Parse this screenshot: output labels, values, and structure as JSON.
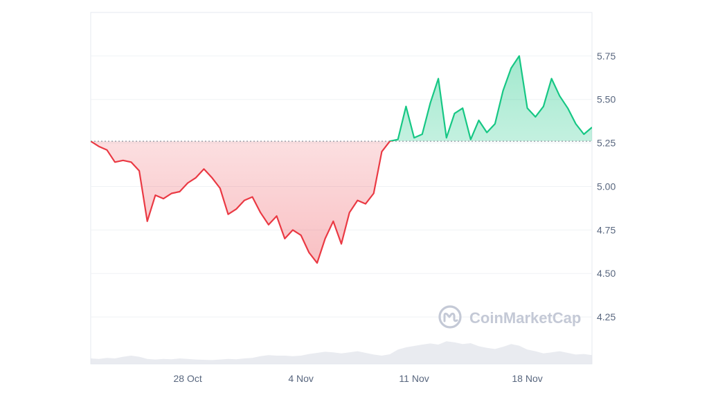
{
  "brand": {
    "name": "CoinMarketCap",
    "logo_icon": "coinmarketcap-logo-icon",
    "watermark_color": "#c4c9d6"
  },
  "colors": {
    "up": "#16c784",
    "down": "#ea3943",
    "grid": "#eff2f5",
    "baseline": "#8a919e",
    "axis_text": "#58667e",
    "volume": "#dfe3ea"
  },
  "chart_data": {
    "type": "area",
    "title": "",
    "xlabel": "",
    "ylabel": "",
    "baseline_value": 5.26,
    "ylim": [
      3.98,
      6.0
    ],
    "yticks": [
      4.25,
      4.5,
      4.75,
      5.0,
      5.25,
      5.5,
      5.75
    ],
    "ytick_labels": [
      "4.25",
      "4.50",
      "4.75",
      "5.00",
      "5.25",
      "5.50",
      "5.75"
    ],
    "xlim": [
      "2024-10-22",
      "2024-11-22"
    ],
    "xticks": [
      {
        "date": "2024-10-28",
        "label": "28 Oct"
      },
      {
        "date": "2024-11-04",
        "label": "4 Nov"
      },
      {
        "date": "2024-11-11",
        "label": "11 Nov"
      },
      {
        "date": "2024-11-18",
        "label": "18 Nov"
      }
    ],
    "grid": true,
    "series": [
      {
        "x": [
          "2024-10-22T00:00",
          "2024-10-22T12:00",
          "2024-10-23T00:00",
          "2024-10-23T12:00",
          "2024-10-24T00:00",
          "2024-10-24T12:00",
          "2024-10-25T00:00",
          "2024-10-25T12:00",
          "2024-10-26T00:00",
          "2024-10-26T12:00",
          "2024-10-27T00:00",
          "2024-10-27T12:00",
          "2024-10-28T00:00",
          "2024-10-28T12:00",
          "2024-10-29T00:00",
          "2024-10-29T12:00",
          "2024-10-30T00:00",
          "2024-10-30T12:00",
          "2024-10-31T00:00",
          "2024-10-31T12:00",
          "2024-11-01T00:00",
          "2024-11-01T12:00",
          "2024-11-02T00:00",
          "2024-11-02T12:00",
          "2024-11-03T00:00",
          "2024-11-03T12:00",
          "2024-11-04T00:00",
          "2024-11-04T12:00",
          "2024-11-05T00:00",
          "2024-11-05T12:00",
          "2024-11-06T00:00",
          "2024-11-06T12:00",
          "2024-11-07T00:00",
          "2024-11-07T12:00",
          "2024-11-08T00:00",
          "2024-11-08T12:00",
          "2024-11-09T00:00",
          "2024-11-09T12:00",
          "2024-11-10T00:00",
          "2024-11-10T12:00",
          "2024-11-11T00:00",
          "2024-11-11T12:00",
          "2024-11-12T00:00",
          "2024-11-12T12:00",
          "2024-11-13T00:00",
          "2024-11-13T12:00",
          "2024-11-14T00:00",
          "2024-11-14T12:00",
          "2024-11-15T00:00",
          "2024-11-15T12:00",
          "2024-11-16T00:00",
          "2024-11-16T12:00",
          "2024-11-17T00:00",
          "2024-11-17T12:00",
          "2024-11-18T00:00",
          "2024-11-18T12:00",
          "2024-11-19T00:00",
          "2024-11-19T12:00",
          "2024-11-20T00:00",
          "2024-11-20T12:00",
          "2024-11-21T00:00",
          "2024-11-21T12:00",
          "2024-11-22T00:00"
        ],
        "values": [
          5.26,
          5.23,
          5.21,
          5.14,
          5.15,
          5.14,
          5.09,
          4.8,
          4.95,
          4.93,
          4.96,
          4.97,
          5.02,
          5.05,
          5.1,
          5.05,
          4.99,
          4.84,
          4.87,
          4.92,
          4.94,
          4.85,
          4.78,
          4.83,
          4.7,
          4.75,
          4.72,
          4.62,
          4.56,
          4.7,
          4.8,
          4.67,
          4.85,
          4.92,
          4.9,
          4.96,
          5.2,
          5.26,
          5.27,
          5.46,
          5.28,
          5.3,
          5.48,
          5.62,
          5.28,
          5.42,
          5.45,
          5.27,
          5.38,
          5.31,
          5.36,
          5.55,
          5.68,
          5.75,
          5.45,
          5.4,
          5.46,
          5.62,
          5.52,
          5.45,
          5.36,
          5.3,
          5.34
        ]
      }
    ],
    "volume": [
      0.2,
      0.18,
      0.22,
      0.2,
      0.26,
      0.3,
      0.26,
      0.18,
      0.16,
      0.18,
      0.17,
      0.2,
      0.18,
      0.16,
      0.15,
      0.14,
      0.16,
      0.18,
      0.17,
      0.2,
      0.22,
      0.28,
      0.32,
      0.3,
      0.3,
      0.28,
      0.3,
      0.36,
      0.4,
      0.44,
      0.42,
      0.38,
      0.42,
      0.46,
      0.4,
      0.34,
      0.3,
      0.35,
      0.52,
      0.6,
      0.65,
      0.7,
      0.74,
      0.7,
      0.82,
      0.78,
      0.72,
      0.75,
      0.64,
      0.58,
      0.54,
      0.62,
      0.72,
      0.66,
      0.52,
      0.46,
      0.38,
      0.42,
      0.46,
      0.4,
      0.34,
      0.36,
      0.32
    ]
  }
}
